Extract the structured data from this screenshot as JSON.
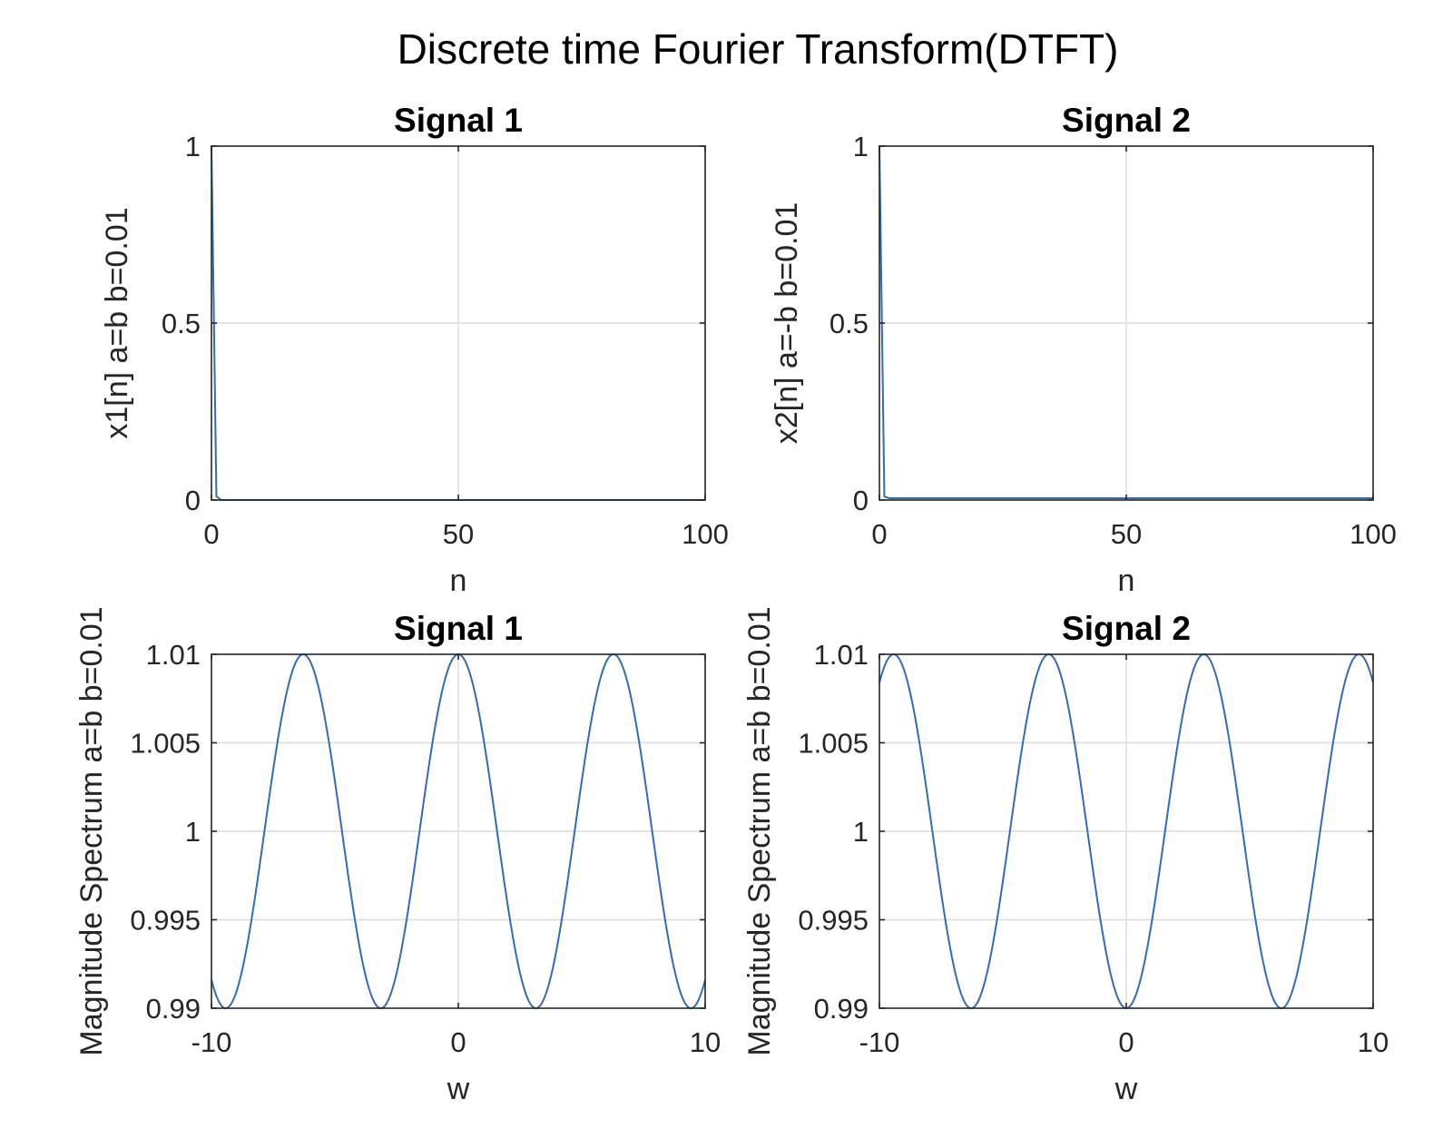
{
  "figure_title": "Discrete time Fourier Transform(DTFT)",
  "series_color": "#2f6db5",
  "chart_data": [
    {
      "type": "line",
      "title": "Signal 1",
      "xlabel": "n",
      "ylabel": "x1[n] a=b b=0.01",
      "xlim": [
        0,
        100
      ],
      "ylim": [
        0,
        1
      ],
      "xticks": [
        "0",
        "50",
        "100"
      ],
      "yticks": [
        "0",
        "0.5",
        "1"
      ],
      "grid": true,
      "x": [
        0,
        1,
        2,
        3,
        4,
        5,
        10,
        20,
        30,
        40,
        50,
        60,
        70,
        80,
        90,
        100
      ],
      "y": [
        1,
        0.01,
        0.0001,
        0,
        0,
        0,
        0,
        0,
        0,
        0,
        0,
        0,
        0,
        0,
        0,
        0
      ]
    },
    {
      "type": "line",
      "title": "Signal 2",
      "xlabel": "n",
      "ylabel": "x2[n] a=-b b=0.01",
      "xlim": [
        0,
        100
      ],
      "ylim": [
        0,
        1
      ],
      "xticks": [
        "0",
        "50",
        "100"
      ],
      "yticks": [
        "0",
        "0.5",
        "1"
      ],
      "grid": true,
      "x": [
        0,
        1,
        2,
        3,
        4,
        5,
        10,
        20,
        30,
        40,
        50,
        60,
        70,
        80,
        90,
        100
      ],
      "y": [
        1,
        0.01,
        0.005,
        0.005,
        0.005,
        0.005,
        0.005,
        0.005,
        0.005,
        0.005,
        0.005,
        0.005,
        0.005,
        0.005,
        0.005,
        0.005
      ]
    },
    {
      "type": "line",
      "title": "Signal 1",
      "xlabel": "w",
      "ylabel": "Magnitude Spectrum a=b b=0.01",
      "xlim": [
        -10,
        10
      ],
      "ylim": [
        0.99,
        1.01
      ],
      "xticks": [
        "-10",
        "0",
        "10"
      ],
      "yticks": [
        "0.99",
        "0.995",
        "1",
        "1.005",
        "1.01"
      ],
      "grid": true,
      "x": [
        -10,
        -9,
        -8,
        -7,
        -6.2832,
        -6,
        -5,
        -4,
        -3.1416,
        -3,
        -2,
        -1,
        0,
        1,
        2,
        3,
        3.1416,
        4,
        5,
        6,
        6.2832,
        7,
        8,
        9,
        10
      ],
      "y": [
        0.99161,
        0.99089,
        0.99854,
        1.00754,
        1.01,
        1.0096,
        1.00284,
        0.99346,
        0.99,
        0.9901,
        0.99584,
        1.0054,
        1.01,
        1.0054,
        0.99584,
        0.9901,
        0.99,
        0.99346,
        1.00284,
        1.0096,
        1.01,
        1.00754,
        0.99854,
        0.99089,
        0.99161
      ]
    },
    {
      "type": "line",
      "title": "Signal 2",
      "xlabel": "w",
      "ylabel": "Magnitude Spectrum a=b b=0.01",
      "xlim": [
        -10,
        10
      ],
      "ylim": [
        0.99,
        1.01
      ],
      "xticks": [
        "-10",
        "0",
        "10"
      ],
      "yticks": [
        "0.99",
        "0.995",
        "1",
        "1.005",
        "1.01"
      ],
      "grid": true,
      "x": [
        -10,
        -9.4248,
        -9,
        -8,
        -7,
        -6.2832,
        -6,
        -5,
        -4,
        -3.1416,
        -3,
        -2,
        -1,
        0,
        1,
        2,
        3,
        3.1416,
        4,
        5,
        6,
        6.2832,
        7,
        8,
        9,
        9.4248,
        10
      ],
      "y": [
        1.00839,
        1.01,
        1.00911,
        1.00146,
        0.99246,
        0.99,
        0.9904,
        0.99716,
        1.00654,
        1.01,
        1.0099,
        1.00416,
        0.9946,
        0.99,
        0.9946,
        1.00416,
        1.0099,
        1.01,
        1.00654,
        0.99716,
        0.9904,
        0.99,
        0.99246,
        1.00146,
        1.00911,
        1.01,
        1.00839
      ]
    }
  ]
}
